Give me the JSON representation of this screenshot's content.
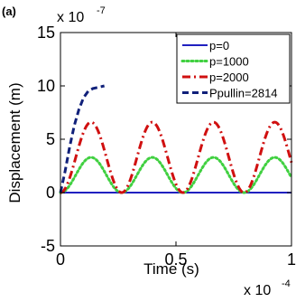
{
  "chart_data": {
    "type": "line",
    "panel_label": "(a)",
    "xlabel": "Time (s)",
    "ylabel": "Displacement (m)",
    "x_multiplier": {
      "base": "x 10",
      "exponent": "-4"
    },
    "y_multiplier": {
      "base": "x 10",
      "exponent": "-7"
    },
    "xlim": [
      0,
      1
    ],
    "ylim": [
      -5,
      15
    ],
    "xticks": [
      0,
      0.5,
      1
    ],
    "xtick_labels": [
      "0",
      "0.5",
      "1"
    ],
    "yticks": [
      -5,
      0,
      5,
      10,
      15
    ],
    "ytick_labels": [
      "-5",
      "0",
      "5",
      "10",
      "15"
    ],
    "grid": false,
    "legend_position": "top-right",
    "series": [
      {
        "name": "p=0",
        "color": "#2020c0",
        "dash": "solid",
        "kind": "zero",
        "x_range": [
          0,
          1
        ],
        "peak": 0
      },
      {
        "name": "p=1000",
        "color": "#40d040",
        "dash": "dotted",
        "kind": "periodic",
        "period": 0.265,
        "peak": 3.3,
        "x_range": [
          0,
          1
        ]
      },
      {
        "name": "p=2000",
        "color": "#d01010",
        "dash": "dashdot",
        "kind": "periodic",
        "period": 0.265,
        "peak": 6.6,
        "x_range": [
          0,
          1
        ]
      },
      {
        "name": "Ppullin=2814",
        "color": "#10207a",
        "dash": "dashed",
        "kind": "points",
        "x": [
          0,
          0.02,
          0.04,
          0.06,
          0.08,
          0.1,
          0.12,
          0.14,
          0.16,
          0.18,
          0.19
        ],
        "y": [
          0,
          2.0,
          4.3,
          6.3,
          7.8,
          8.9,
          9.5,
          9.75,
          9.85,
          9.95,
          10.0
        ]
      }
    ]
  }
}
